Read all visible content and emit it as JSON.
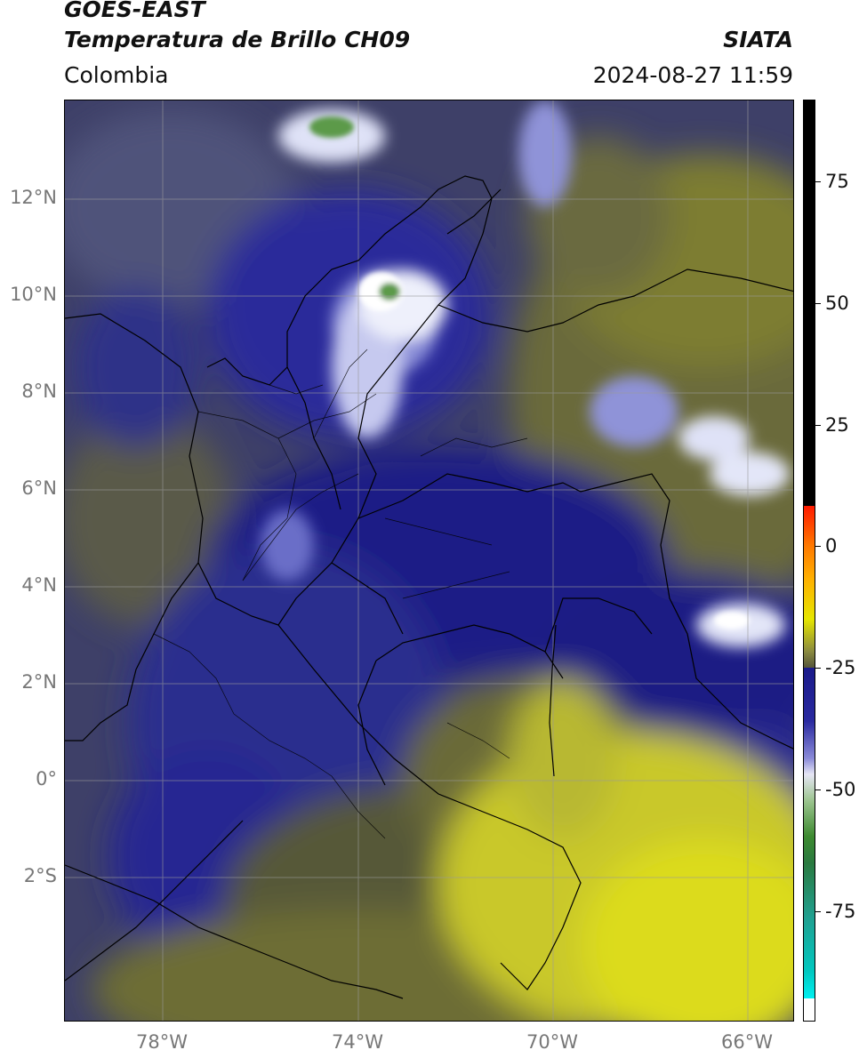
{
  "header": {
    "satellite": "GOES-EAST",
    "product": "Temperatura de Brillo CH09",
    "org": "SIATA",
    "region": "Colombia",
    "timestamp": "2024-08-27 11:59"
  },
  "axes": {
    "lat_labels": [
      "12°N",
      "10°N",
      "8°N",
      "6°N",
      "4°N",
      "2°N",
      "0°",
      "2°S"
    ],
    "lon_labels": [
      "78°W",
      "74°W",
      "70°W",
      "66°W"
    ]
  },
  "colorbar": {
    "labels": [
      "75",
      "50",
      "25",
      "0",
      "-25",
      "-50",
      "-75"
    ],
    "colors": {
      "warm": "#000000",
      "red": "#ff2200",
      "orange": "#ff9900",
      "yellow": "#e6e600",
      "olive": "#5a5a3a",
      "navy": "#1a1a8a",
      "white": "#ffffff",
      "green": "#3d8a30",
      "teal": "#20a090",
      "cyan": "#00e5e5"
    }
  },
  "map_colors": {
    "navy": "#1d1f80",
    "blue": "#2a2fa0",
    "gray_blue": "#3d4068",
    "olive_gray": "#55563c",
    "olive": "#7a7a30",
    "yellow": "#d6d820",
    "cloud_white": "#e8eaf6",
    "cloud_green": "#5c9a48"
  }
}
